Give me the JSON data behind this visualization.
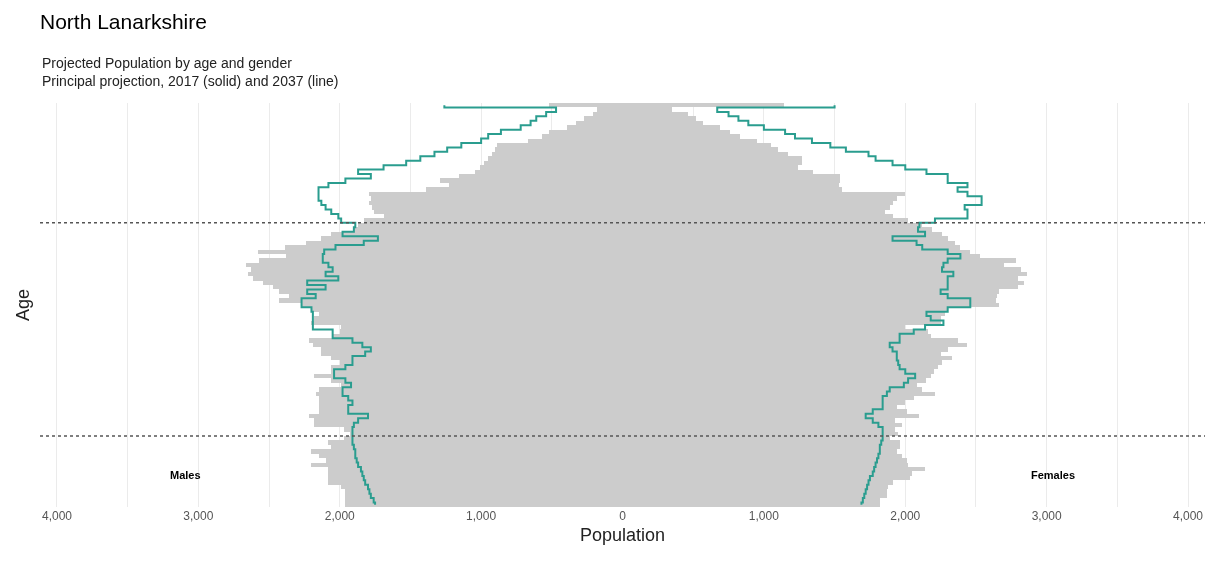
{
  "chart_data": {
    "type": "bar",
    "orientation": "horizontal",
    "title": "North Lanarkshire",
    "subtitle": "Projected Population by age and gender\nPrincipal projection, 2017 (solid) and 2037 (line)",
    "xlabel": "Population",
    "ylabel": "Age",
    "categories": [
      null,
      null,
      null,
      null,
      null,
      null,
      null,
      null,
      null,
      null,
      null,
      null,
      null,
      null,
      null,
      null,
      null,
      null,
      null,
      null,
      null,
      null,
      null,
      null,
      null,
      null,
      null,
      null,
      null,
      null,
      null,
      null,
      null,
      null,
      null,
      null,
      null,
      null,
      null,
      null,
      null,
      null,
      null,
      null,
      null,
      null,
      null,
      null,
      null,
      null,
      null,
      null,
      null,
      null,
      null,
      null,
      null,
      null,
      null,
      null,
      null,
      null,
      null,
      null,
      null,
      null,
      null,
      null,
      null,
      null,
      null,
      null,
      null,
      null,
      null,
      null,
      null,
      null,
      null,
      null,
      null,
      null,
      null,
      null,
      null,
      null,
      null,
      null,
      null,
      null,
      null
    ],
    "series": [
      {
        "color": "#cccccc",
        "values": [
          -520,
          -180,
          -210,
          -270,
          -330,
          -390,
          -520,
          -570,
          -670,
          -890,
          -900,
          -920,
          -950,
          -980,
          -1010,
          -1040,
          -1160,
          -1290,
          -1230,
          -1390,
          -1790,
          -1780,
          -1790,
          -1770,
          -1760,
          -1690,
          -1830,
          -1870,
          -1900,
          -2060,
          -2130,
          -2240,
          -2390,
          -2580,
          -2380,
          -2570,
          -2660,
          -2630,
          -2650,
          -2610,
          -2540,
          -2470,
          -2430,
          -2360,
          -2430,
          -2270,
          -2200,
          -2150,
          -2180,
          -2200,
          -1990,
          -2000,
          -2050,
          -2220,
          -2190,
          -2130,
          -2130,
          -2060,
          -2000,
          -2060,
          -2060,
          -2180,
          -2060,
          -1990,
          -2150,
          -2170,
          -2150,
          -2150,
          -2150,
          -2150,
          -2220,
          -2180,
          -2180,
          -1970,
          -1930,
          -1970,
          -2080,
          -2060,
          -2200,
          -2150,
          -2100,
          -2200,
          -2080,
          -2080,
          -2080,
          -2080,
          -1990,
          -1960,
          -1960,
          -1960,
          -1960
        ]
      },
      {
        "color": "#cccccc",
        "values": [
          1140,
          350,
          460,
          520,
          570,
          690,
          760,
          830,
          950,
          1050,
          1100,
          1170,
          1270,
          1270,
          1240,
          1350,
          1540,
          1540,
          1530,
          1550,
          2000,
          1940,
          1910,
          1890,
          1860,
          1910,
          2020,
          2120,
          2190,
          2260,
          2300,
          2350,
          2390,
          2460,
          2530,
          2780,
          2700,
          2820,
          2860,
          2800,
          2840,
          2800,
          2660,
          2650,
          2640,
          2660,
          2300,
          2280,
          2250,
          2250,
          2000,
          2160,
          2180,
          2370,
          2440,
          2300,
          2250,
          2330,
          2260,
          2230,
          2200,
          2180,
          2150,
          2080,
          2120,
          2210,
          2060,
          2000,
          1940,
          2010,
          2100,
          1930,
          1980,
          1930,
          1950,
          1890,
          1960,
          1960,
          1940,
          1980,
          2010,
          2020,
          2140,
          2050,
          2030,
          1910,
          1880,
          1870,
          1870,
          1820,
          1820
        ]
      },
      {
        "type": "step",
        "color": "#2a9d8f",
        "values": [
          -1260,
          -470,
          -540,
          -610,
          -650,
          -720,
          -860,
          -950,
          -1000,
          -1140,
          -1240,
          -1330,
          -1430,
          -1530,
          -1690,
          -1870,
          -1780,
          -1960,
          -2080,
          -2150,
          -2150,
          -2150,
          -2130,
          -2100,
          -2060,
          -2010,
          -1990,
          -1890,
          -1900,
          -1980,
          -1730,
          -1830,
          -2030,
          -2110,
          -2120,
          -2120,
          -2080,
          -2050,
          -2100,
          -2010,
          -2230,
          -2100,
          -2230,
          -2170,
          -2270,
          -2270,
          -2200,
          -2190,
          -2190,
          -2190,
          -2190,
          -2050,
          -2050,
          -1910,
          -1840,
          -1780,
          -1820,
          -1910,
          -1910,
          -1960,
          -2040,
          -2040,
          -1960,
          -1920,
          -1980,
          -1980,
          -1940,
          -1910,
          -1940,
          -1940,
          -1800,
          -1870,
          -1900,
          -1910,
          -1910,
          -1910,
          -1910,
          -1900,
          -1890,
          -1890,
          -1880,
          -1870,
          -1850,
          -1840,
          -1830,
          -1820,
          -1800,
          -1790,
          -1780,
          -1760,
          -1750
        ]
      },
      {
        "type": "step",
        "color": "#2a9d8f",
        "values": [
          1500,
          670,
          750,
          820,
          890,
          1000,
          1150,
          1220,
          1340,
          1470,
          1580,
          1740,
          1790,
          1910,
          2000,
          2150,
          2300,
          2300,
          2440,
          2370,
          2440,
          2540,
          2540,
          2420,
          2440,
          2440,
          2210,
          2100,
          2090,
          2140,
          1910,
          2080,
          2120,
          2300,
          2390,
          2300,
          2270,
          2260,
          2340,
          2300,
          2300,
          2300,
          2250,
          2300,
          2460,
          2460,
          2300,
          2150,
          2180,
          2270,
          2140,
          2060,
          1960,
          1960,
          1890,
          1910,
          1940,
          1940,
          1950,
          1960,
          2000,
          2070,
          2020,
          1990,
          1890,
          1870,
          1840,
          1840,
          1840,
          1770,
          1720,
          1770,
          1810,
          1840,
          1840,
          1840,
          1830,
          1820,
          1820,
          1810,
          1800,
          1790,
          1780,
          1770,
          1750,
          1740,
          1730,
          1720,
          1710,
          1700,
          1690
        ]
      }
    ],
    "xlim": [
      -4120,
      4120
    ],
    "xticks": [
      {
        "value": -4000,
        "label": "4,000"
      },
      {
        "value": -3500,
        "label": null
      },
      {
        "value": -3000,
        "label": "3,000"
      },
      {
        "value": -2500,
        "label": null
      },
      {
        "value": -2000,
        "label": "2,000"
      },
      {
        "value": -1500,
        "label": null
      },
      {
        "value": -1000,
        "label": "1,000"
      },
      {
        "value": -500,
        "label": null
      },
      0,
      {
        "value": 500,
        "label": null
      },
      {
        "value": 1000,
        "label": "1,000"
      },
      {
        "value": 1500,
        "label": null
      },
      {
        "value": 2000,
        "label": "2,000"
      },
      {
        "value": 2500,
        "label": null
      },
      {
        "value": 3000,
        "label": "3,000"
      },
      {
        "value": 3500,
        "label": null
      },
      {
        "value": 4000,
        "label": "4,000"
      }
    ],
    "tick_labels": "x",
    "grid": "x",
    "stacked": true,
    "annotations": [
      "Males",
      "Females"
    ]
  }
}
